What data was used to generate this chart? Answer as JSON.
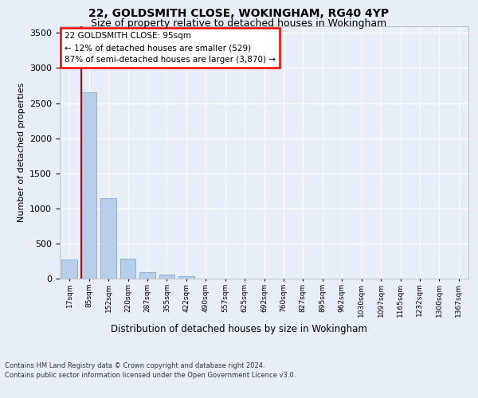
{
  "title1": "22, GOLDSMITH CLOSE, WOKINGHAM, RG40 4YP",
  "title2": "Size of property relative to detached houses in Wokingham",
  "xlabel": "Distribution of detached houses by size in Wokingham",
  "ylabel": "Number of detached properties",
  "categories": [
    "17sqm",
    "85sqm",
    "152sqm",
    "220sqm",
    "287sqm",
    "355sqm",
    "422sqm",
    "490sqm",
    "557sqm",
    "625sqm",
    "692sqm",
    "760sqm",
    "827sqm",
    "895sqm",
    "962sqm",
    "1030sqm",
    "1097sqm",
    "1165sqm",
    "1232sqm",
    "1300sqm",
    "1367sqm"
  ],
  "values": [
    270,
    2650,
    1140,
    285,
    95,
    55,
    35,
    0,
    0,
    0,
    0,
    0,
    0,
    0,
    0,
    0,
    0,
    0,
    0,
    0,
    0
  ],
  "bar_color": "#b8ceea",
  "bar_edge_color": "#6ca0d0",
  "vline_color": "#cc0000",
  "vline_x": 0.6,
  "annotation_title": "22 GOLDSMITH CLOSE: 95sqm",
  "annotation_line1": "← 12% of detached houses are smaller (529)",
  "annotation_line2": "87% of semi-detached houses are larger (3,870) →",
  "ylim": [
    0,
    3600
  ],
  "yticks": [
    0,
    500,
    1000,
    1500,
    2000,
    2500,
    3000,
    3500
  ],
  "footnote1": "Contains HM Land Registry data © Crown copyright and database right 2024.",
  "footnote2": "Contains public sector information licensed under the Open Government Licence v3.0.",
  "bg_color": "#e8eef8",
  "grid_color": "#ffffff"
}
